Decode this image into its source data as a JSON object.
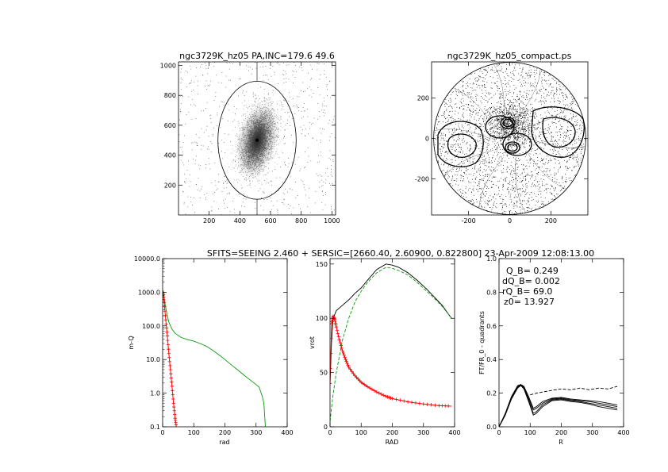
{
  "figure": {
    "main_title": "SFITS=SEEING 2.460 + SERSIC=[2660.40, 2.60900, 0.822800]  23-Apr-2009 12:08:13.00"
  },
  "chart_data": [
    {
      "type": "image",
      "title": "ngc3729K_hz05 PA,INC=179.6 49.6",
      "xlim": [
        0,
        1024
      ],
      "ylim": [
        0,
        1024
      ],
      "xticks": [
        200,
        400,
        600,
        800,
        1000
      ],
      "yticks": [
        200,
        400,
        600,
        800,
        1000
      ],
      "grid": false,
      "ellipse": {
        "cx": 512,
        "cy": 500,
        "semi_major": 395,
        "semi_minor": 255,
        "pa_deg": 179.6
      },
      "center": [
        512,
        500
      ]
    },
    {
      "type": "scatter",
      "title": "ngc3729K_hz05_compact.ps",
      "xlim": [
        -380,
        380
      ],
      "ylim": [
        -380,
        380
      ],
      "xticks": [
        -200,
        0,
        200
      ],
      "yticks": [
        -200,
        0,
        200
      ],
      "grid": false,
      "circle_radius": 370
    },
    {
      "type": "line",
      "xlabel": "rad",
      "ylabel": "m-Q",
      "xlim": [
        0,
        400
      ],
      "ylim": [
        0.1,
        10000
      ],
      "yscale": "log",
      "xticks": [
        0,
        100,
        200,
        300,
        400
      ],
      "ytick_labels": [
        "0.1",
        "1.0",
        "10.0",
        "100.0",
        "1000.0",
        "10000.0"
      ],
      "grid": false,
      "series": [
        {
          "color": "#0a9a0a",
          "style": "solid",
          "x": [
            2,
            5,
            10,
            15,
            20,
            30,
            40,
            60,
            80,
            100,
            120,
            140,
            160,
            180,
            200,
            220,
            240,
            260,
            280,
            300,
            310,
            320,
            325,
            330
          ],
          "y": [
            1100,
            650,
            350,
            200,
            130,
            80,
            60,
            45,
            39,
            35,
            30,
            25,
            19,
            14,
            10,
            7,
            5,
            3.5,
            2.5,
            1.8,
            1.5,
            0.8,
            0.5,
            0.1
          ]
        },
        {
          "color": "#ff0000",
          "style": "markers",
          "x": [
            2,
            5,
            10,
            15,
            20,
            25,
            30,
            35,
            40,
            44
          ],
          "y": [
            1000,
            500,
            150,
            50,
            15,
            5,
            1.6,
            0.5,
            0.18,
            0.1
          ]
        }
      ]
    },
    {
      "type": "line",
      "xlabel": "RAD",
      "ylabel": "vrot",
      "xlim": [
        0,
        400
      ],
      "ylim": [
        0,
        155
      ],
      "xticks": [
        0,
        100,
        200,
        300,
        400
      ],
      "yticks": [
        0,
        50,
        100,
        150
      ],
      "grid": false,
      "series": [
        {
          "color": "#000000",
          "style": "solid",
          "x": [
            0,
            5,
            10,
            20,
            40,
            60,
            80,
            100,
            120,
            150,
            180,
            200,
            220,
            250,
            280,
            310,
            340,
            360,
            380,
            390
          ],
          "y": [
            40,
            80,
            100,
            107,
            112,
            117,
            123,
            128,
            135,
            145,
            150,
            149,
            147,
            142,
            135,
            127,
            118,
            112,
            104,
            100
          ]
        },
        {
          "color": "#0a9a0a",
          "style": "dashed",
          "x": [
            0,
            10,
            20,
            40,
            60,
            80,
            100,
            120,
            150,
            180,
            200,
            220,
            250,
            280,
            310,
            340,
            360,
            380,
            390
          ],
          "y": [
            5,
            30,
            50,
            80,
            100,
            115,
            125,
            133,
            142,
            147,
            146,
            144,
            140,
            133,
            125,
            117,
            111,
            104,
            100
          ]
        },
        {
          "color": "#ff0000",
          "style": "markers",
          "x": [
            0,
            5,
            10,
            15,
            20,
            30,
            40,
            50,
            60,
            80,
            100,
            120,
            150,
            180,
            200,
            250,
            300,
            350,
            390
          ],
          "y": [
            40,
            95,
            102,
            99,
            92,
            80,
            70,
            62,
            55,
            47,
            41,
            37,
            32,
            28,
            26,
            23,
            21,
            19.5,
            19
          ]
        }
      ]
    },
    {
      "type": "line",
      "xlabel": "R",
      "ylabel": "FT/FR_0 - quadrants",
      "xlim": [
        0,
        400
      ],
      "ylim": [
        0,
        1.0
      ],
      "xticks": [
        0,
        100,
        200,
        300,
        400
      ],
      "ytick_labels": [
        "0.0",
        "0.2",
        "0.4",
        "0.6",
        "0.8",
        "1.0"
      ],
      "grid": false,
      "annotations": [
        "Q_B=  0.249",
        "dQ_B=  0.002",
        "rQ_B=   69.0",
        "z0= 13.927"
      ],
      "series": [
        {
          "color": "#000000",
          "style": "solid",
          "x": [
            0,
            20,
            40,
            60,
            70,
            80,
            95,
            110,
            120,
            140,
            170,
            200,
            230,
            260,
            290,
            320,
            350,
            380
          ],
          "y": [
            0,
            0.07,
            0.17,
            0.235,
            0.248,
            0.23,
            0.16,
            0.08,
            0.09,
            0.13,
            0.16,
            0.165,
            0.155,
            0.15,
            0.14,
            0.13,
            0.12,
            0.11
          ]
        },
        {
          "color": "#000000",
          "style": "solid",
          "x": [
            0,
            20,
            40,
            60,
            70,
            80,
            95,
            110,
            120,
            140,
            170,
            200,
            230,
            260,
            290,
            320,
            350,
            380
          ],
          "y": [
            0,
            0.075,
            0.175,
            0.24,
            0.25,
            0.235,
            0.17,
            0.1,
            0.11,
            0.14,
            0.165,
            0.17,
            0.16,
            0.155,
            0.15,
            0.14,
            0.13,
            0.12
          ]
        },
        {
          "color": "#000000",
          "style": "solid",
          "x": [
            0,
            20,
            40,
            60,
            70,
            80,
            95,
            110,
            120,
            140,
            170,
            200,
            230,
            260,
            290,
            320,
            350,
            380
          ],
          "y": [
            0,
            0.07,
            0.165,
            0.23,
            0.245,
            0.225,
            0.15,
            0.07,
            0.08,
            0.12,
            0.155,
            0.16,
            0.15,
            0.145,
            0.135,
            0.12,
            0.11,
            0.1
          ]
        },
        {
          "color": "#000000",
          "style": "solid",
          "x": [
            0,
            20,
            40,
            60,
            70,
            80,
            95,
            110,
            120,
            140,
            170,
            200,
            230,
            260,
            290,
            320,
            350,
            380
          ],
          "y": [
            0,
            0.08,
            0.18,
            0.245,
            0.252,
            0.24,
            0.18,
            0.11,
            0.12,
            0.15,
            0.17,
            0.175,
            0.165,
            0.16,
            0.155,
            0.15,
            0.14,
            0.13
          ]
        },
        {
          "color": "#000000",
          "style": "dashed",
          "x": [
            100,
            120,
            150,
            180,
            200,
            230,
            260,
            290,
            320,
            350,
            380
          ],
          "y": [
            0.19,
            0.2,
            0.21,
            0.22,
            0.225,
            0.22,
            0.23,
            0.22,
            0.23,
            0.225,
            0.24
          ]
        }
      ]
    }
  ]
}
